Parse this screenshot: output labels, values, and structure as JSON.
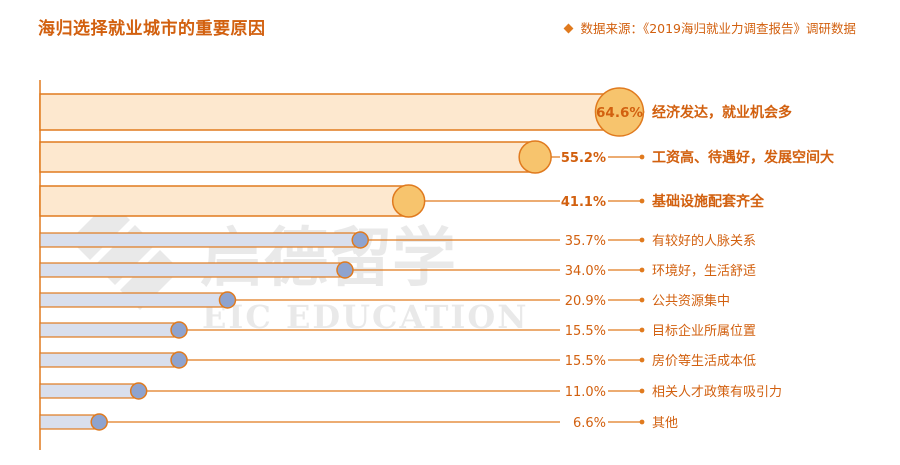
{
  "header": {
    "title": "海归选择就业城市的重要原因",
    "source": "数据来源：《2019海归就业力调查报告》调研数据"
  },
  "watermark": {
    "cn": "启德留学",
    "en": "EIC EDUCATION"
  },
  "colors": {
    "accent": "#e07a1e",
    "highlight_fill": "#fde8cf",
    "highlight_circle": "#f7c46d",
    "normal_fill": "#d9dfed",
    "normal_circle": "#8ea3cf",
    "text": "#d2600f"
  },
  "chart_data": {
    "type": "bar",
    "orientation": "horizontal",
    "categories": [
      "经济发达，就业机会多",
      "工资高、待遇好，发展空间大",
      "基础设施配套齐全",
      "有较好的人脉关系",
      "环境好，生活舒适",
      "公共资源集中",
      "目标企业所属位置",
      "房价等生活成本低",
      "相关人才政策有吸引力",
      "其他"
    ],
    "values": [
      64.6,
      55.2,
      41.1,
      35.7,
      34.0,
      20.9,
      15.5,
      15.5,
      11.0,
      6.6
    ],
    "value_labels": [
      "64.6%",
      "55.2%",
      "41.1%",
      "35.7%",
      "34.0%",
      "20.9%",
      "15.5%",
      "15.5%",
      "11.0%",
      "6.6%"
    ],
    "highlighted": [
      true,
      true,
      true,
      false,
      false,
      false,
      false,
      false,
      false,
      false
    ],
    "title": "海归选择就业城市的重要原因",
    "xlim": [
      0,
      70
    ]
  }
}
